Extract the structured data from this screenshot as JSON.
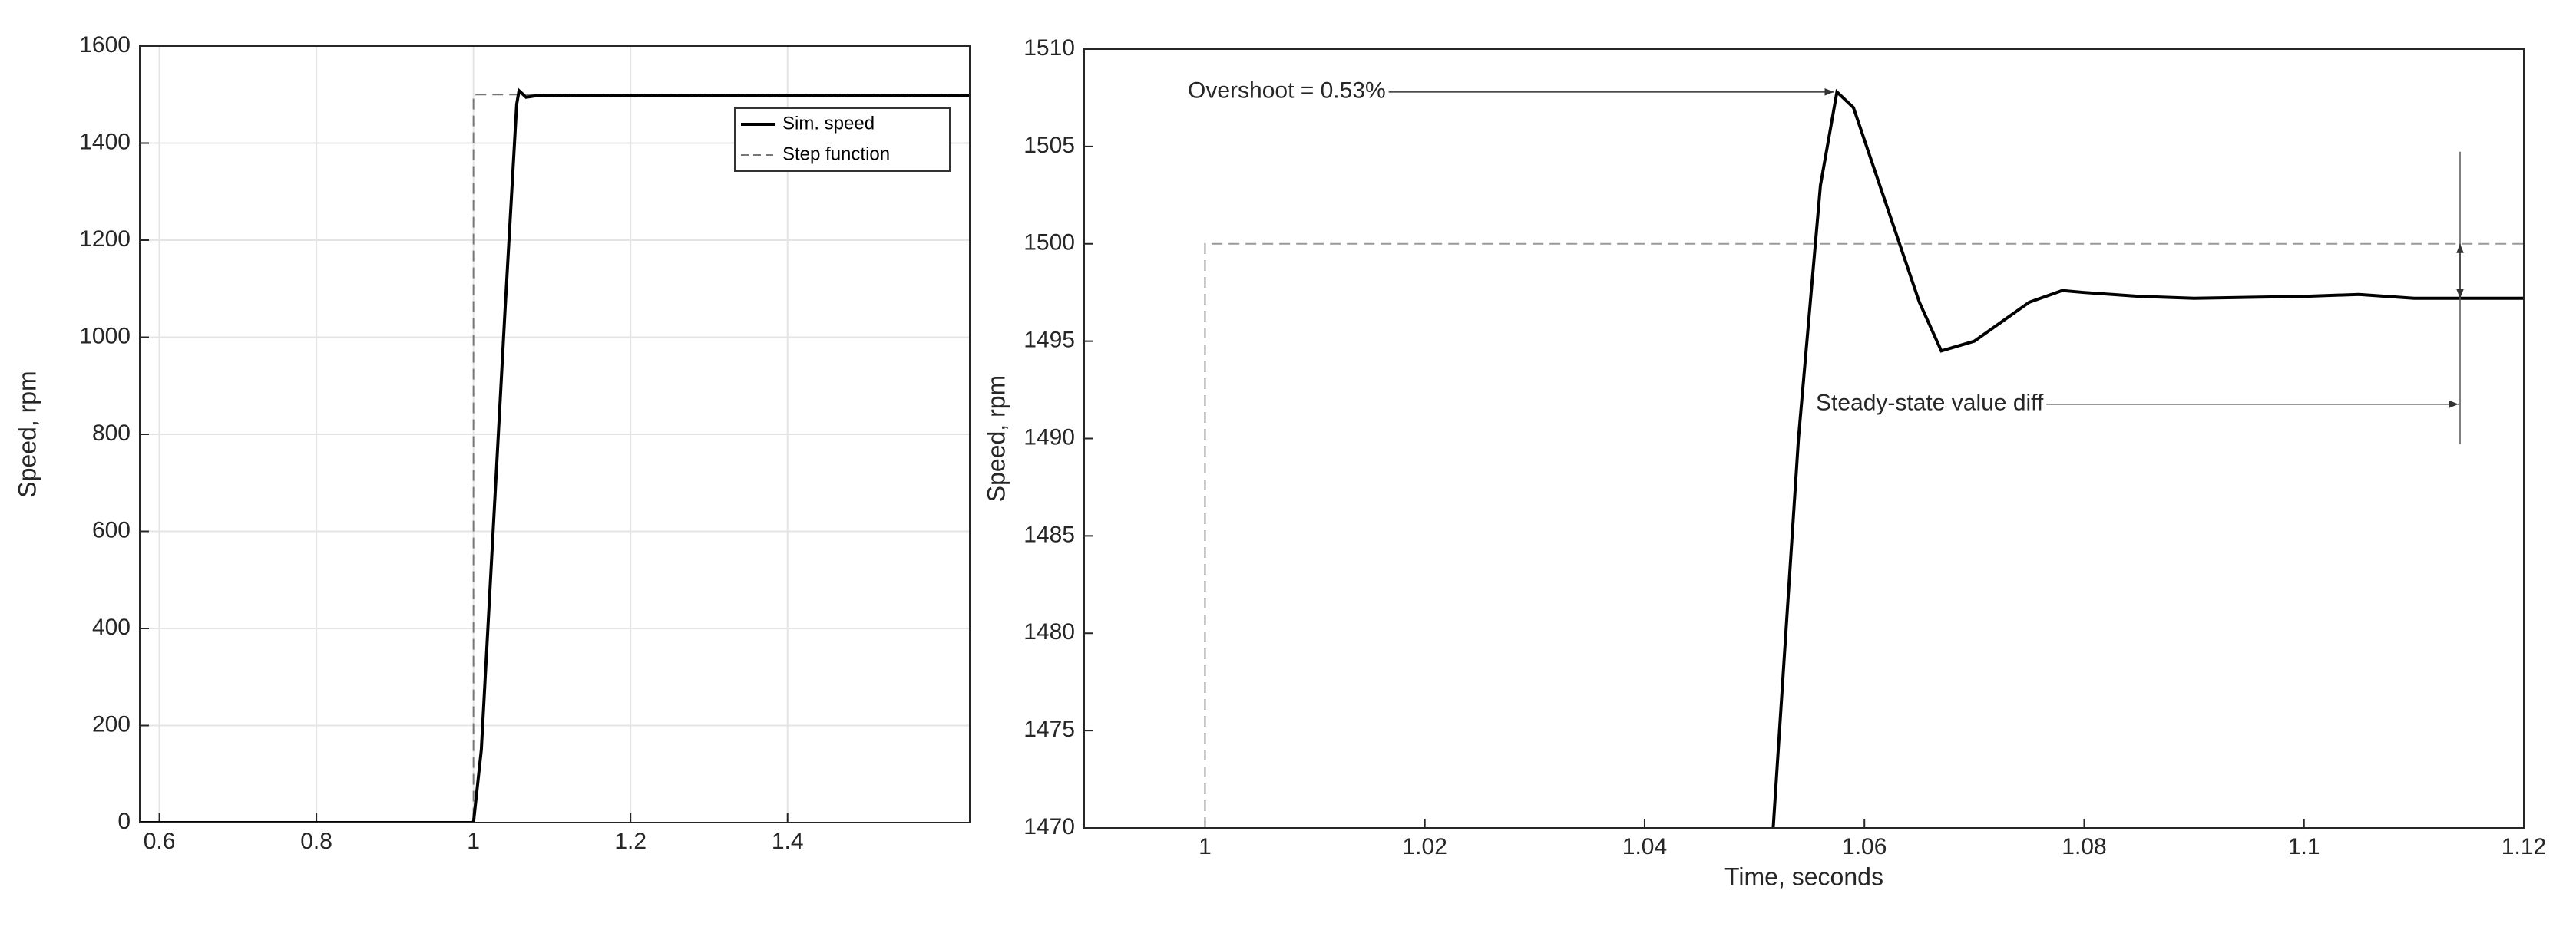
{
  "chart_data": [
    {
      "type": "line",
      "ylabel": "Speed, rpm",
      "xlim": [
        0.575,
        1.632
      ],
      "ylim": [
        0,
        1600
      ],
      "xticks": [
        0.6,
        0.8,
        1,
        1.2,
        1.4
      ],
      "yticks": [
        0,
        200,
        400,
        600,
        800,
        1000,
        1200,
        1400,
        1600
      ],
      "grid": true,
      "legend": "upper right",
      "series": [
        {
          "name": "Sim. speed",
          "color": "#000000",
          "dash": false,
          "x": [
            0.575,
            0.99,
            1.0,
            1.01,
            1.02,
            1.04,
            1.055,
            1.058,
            1.067,
            1.08,
            1.1,
            1.632
          ],
          "values": [
            0,
            0,
            0,
            150,
            450,
            1050,
            1480,
            1508,
            1494.5,
            1497.6,
            1497.3,
            1497.2
          ]
        },
        {
          "name": "Step function",
          "color": "#777777",
          "dash": true,
          "x": [
            0.575,
            1,
            1,
            1.632
          ],
          "values": [
            0,
            0,
            1500,
            1500
          ]
        }
      ]
    },
    {
      "type": "line",
      "ylabel": "Speed, rpm",
      "xlabel": "Time, seconds",
      "xlim": [
        0.989,
        1.12
      ],
      "ylim": [
        1470,
        1510
      ],
      "xticks": [
        1,
        1.02,
        1.04,
        1.06,
        1.08,
        1.1,
        1.12
      ],
      "yticks": [
        1470,
        1475,
        1480,
        1485,
        1490,
        1495,
        1500,
        1505,
        1510
      ],
      "grid": false,
      "annotations": [
        {
          "text": "Overshoot = 0.53%"
        },
        {
          "text": "Steady-state value diff"
        }
      ],
      "series": [
        {
          "color": "#000000",
          "dash": false,
          "x": [
            1.0517,
            1.054,
            1.056,
            1.0575,
            1.059,
            1.062,
            1.065,
            1.067,
            1.07,
            1.075,
            1.078,
            1.08,
            1.085,
            1.09,
            1.1,
            1.105,
            1.11,
            1.12
          ],
          "values": [
            1470,
            1490,
            1503,
            1507.8,
            1507,
            1502,
            1497,
            1494.5,
            1495,
            1497,
            1497.6,
            1497.5,
            1497.3,
            1497.2,
            1497.3,
            1497.4,
            1497.2,
            1497.2
          ]
        },
        {
          "color": "#999999",
          "dash": true,
          "x": [
            1,
            1,
            1.12
          ],
          "values": [
            1470,
            1500,
            1500
          ]
        }
      ]
    }
  ]
}
